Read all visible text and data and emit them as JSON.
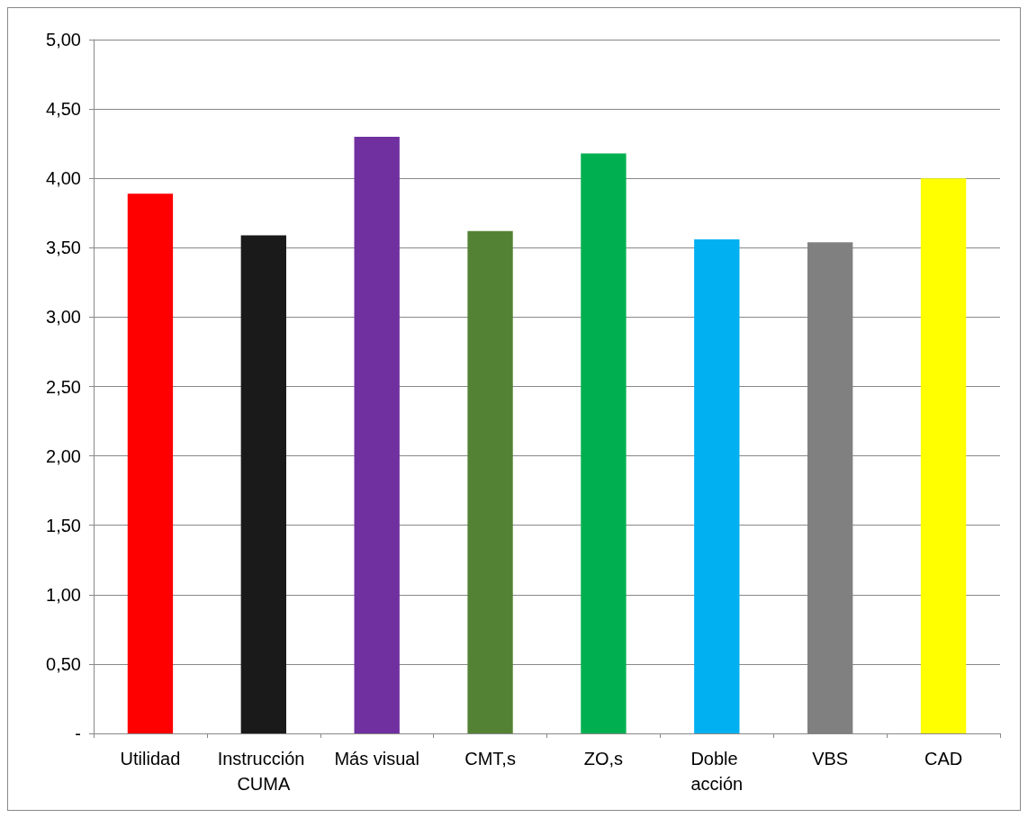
{
  "chart_data": {
    "type": "bar",
    "categories": [
      "Utilidad",
      "Instrucción CUMA",
      "Más visual",
      "CMT,s",
      "ZO,s",
      "Doble acción",
      "VBS",
      "CAD"
    ],
    "values": [
      3.89,
      3.59,
      4.3,
      3.62,
      4.18,
      3.56,
      3.54,
      4.0
    ],
    "colors": [
      "#ff0000",
      "#1a1a1a",
      "#7030a0",
      "#548235",
      "#00b050",
      "#00b0f0",
      "#808080",
      "#ffff00"
    ],
    "ylim": [
      0,
      5
    ],
    "yticks": [
      {
        "value": 0,
        "label": "-"
      },
      {
        "value": 0.5,
        "label": "0,50"
      },
      {
        "value": 1,
        "label": "1,00"
      },
      {
        "value": 1.5,
        "label": "1,50"
      },
      {
        "value": 2,
        "label": "2,00"
      },
      {
        "value": 2.5,
        "label": "2,50"
      },
      {
        "value": 3,
        "label": "3,00"
      },
      {
        "value": 3.5,
        "label": "3,50"
      },
      {
        "value": 4,
        "label": "4,00"
      },
      {
        "value": 4.5,
        "label": "4,50"
      },
      {
        "value": 5,
        "label": "5,00"
      }
    ],
    "grid": "y"
  }
}
